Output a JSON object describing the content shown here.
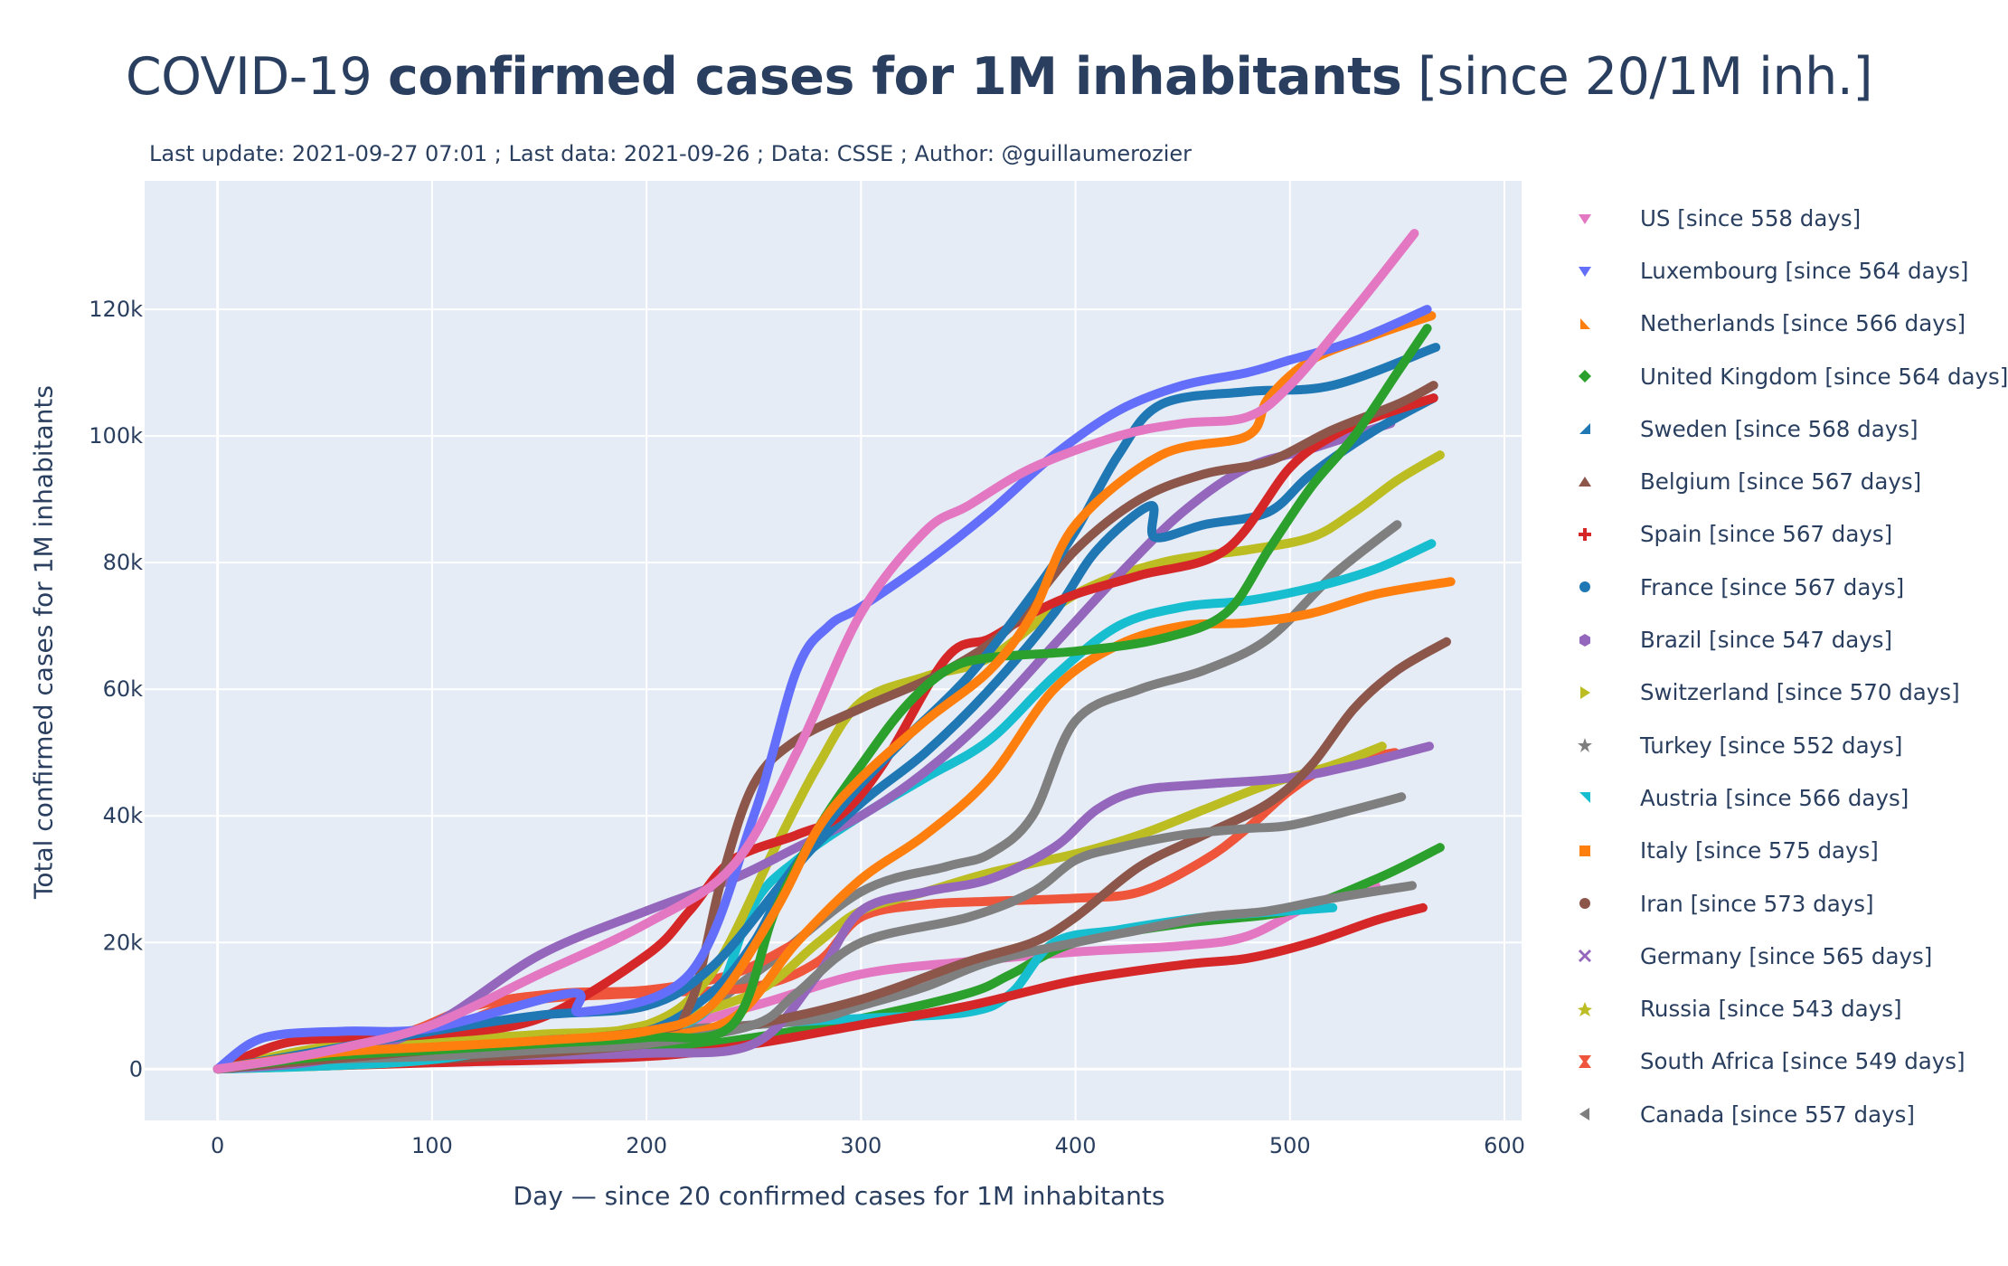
{
  "title": {
    "part1": "COVID-19 ",
    "part2": "confirmed cases for 1M inhabitants",
    "part3": " [since 20/1M inh.]"
  },
  "subtitle": "Last update: 2021-09-27 07:01 ; Last data: 2021-09-26 ; Data: CSSE ; Author: @guillaumerozier",
  "chart_data": {
    "type": "line",
    "title": "COVID-19 confirmed cases for 1M inhabitants [since 20/1M inh.]",
    "xlabel": "Day — since 20 confirmed cases  for 1M inhabitants",
    "ylabel": "Total confirmed cases  for 1M inhabitants",
    "xlim": [
      -34,
      608
    ],
    "ylim": [
      -8100,
      140300
    ],
    "xticks": [
      0,
      100,
      200,
      300,
      400,
      500,
      600
    ],
    "yticks": [
      0,
      20000,
      40000,
      60000,
      80000,
      100000,
      120000
    ],
    "ytick_labels": [
      "0",
      "20k",
      "40k",
      "60k",
      "80k",
      "100k",
      "120k"
    ],
    "grid": true,
    "legend_position": "right",
    "series": [
      {
        "name": "US  [since 558 days]",
        "color": "#e377c2",
        "symbol": "triangle-down",
        "x": [
          0,
          30,
          60,
          100,
          150,
          200,
          240,
          270,
          300,
          330,
          350,
          380,
          420,
          450,
          480,
          500,
          530,
          558
        ],
        "y": [
          20,
          1500,
          3500,
          7000,
          15000,
          23000,
          32000,
          50000,
          72000,
          85000,
          89000,
          95000,
          100000,
          102000,
          103000,
          108000,
          120000,
          132000
        ]
      },
      {
        "name": "Luxembourg  [since 564 days]",
        "color": "#636efa",
        "symbol": "triangle-down",
        "x": [
          0,
          15,
          30,
          60,
          100,
          165,
          170,
          220,
          250,
          270,
          285,
          300,
          330,
          360,
          390,
          420,
          450,
          480,
          500,
          530,
          564
        ],
        "y": [
          20,
          4000,
          5500,
          6000,
          6500,
          12000,
          9000,
          15000,
          40000,
          63000,
          70000,
          73000,
          80000,
          88000,
          97000,
          104000,
          108000,
          110000,
          112000,
          115000,
          120000
        ]
      },
      {
        "name": "Netherlands  [since 566 days]",
        "color": "#ff7f0e",
        "symbol": "triangle-se",
        "x": [
          0,
          50,
          100,
          150,
          200,
          230,
          260,
          280,
          300,
          330,
          360,
          380,
          400,
          440,
          480,
          490,
          510,
          540,
          566
        ],
        "y": [
          20,
          2500,
          3500,
          4500,
          6000,
          10000,
          25000,
          38000,
          46000,
          55000,
          63000,
          72000,
          86000,
          97000,
          100000,
          106000,
          112000,
          116000,
          119000
        ]
      },
      {
        "name": "United Kingdom  [since 564 days]",
        "color": "#2ca02c",
        "symbol": "diamond",
        "x": [
          0,
          50,
          100,
          150,
          200,
          240,
          260,
          280,
          300,
          320,
          340,
          360,
          400,
          440,
          470,
          490,
          510,
          530,
          550,
          564
        ],
        "y": [
          20,
          2000,
          3000,
          4000,
          5000,
          7000,
          25000,
          38000,
          48000,
          57000,
          63000,
          65000,
          66000,
          68000,
          72000,
          82000,
          92000,
          100000,
          110000,
          117000
        ]
      },
      {
        "name": "Sweden  [since 568 days]",
        "color": "#1f77b4",
        "symbol": "triangle-ne",
        "x": [
          0,
          50,
          100,
          150,
          200,
          230,
          260,
          280,
          300,
          320,
          350,
          380,
          400,
          420,
          440,
          480,
          520,
          568
        ],
        "y": [
          20,
          3000,
          6000,
          8500,
          10000,
          16000,
          28000,
          37000,
          45000,
          52000,
          62000,
          75000,
          85000,
          97000,
          105000,
          107000,
          108000,
          114000
        ]
      },
      {
        "name": "Belgium  [since 567 days]",
        "color": "#8c564b",
        "symbol": "triangle-up",
        "x": [
          0,
          100,
          200,
          220,
          235,
          250,
          270,
          300,
          340,
          370,
          400,
          430,
          460,
          490,
          520,
          550,
          567
        ],
        "y": [
          20,
          3000,
          6000,
          10000,
          30000,
          45000,
          52000,
          57000,
          63000,
          70000,
          82000,
          90000,
          94000,
          96000,
          101000,
          105000,
          108000
        ]
      },
      {
        "name": "Spain  [since 567 days]",
        "color": "#d62728",
        "symbol": "cross",
        "x": [
          0,
          30,
          60,
          100,
          150,
          200,
          220,
          240,
          270,
          290,
          310,
          340,
          360,
          380,
          400,
          430,
          470,
          500,
          520,
          540,
          567
        ],
        "y": [
          20,
          4000,
          5000,
          5500,
          8000,
          18000,
          25000,
          33000,
          37000,
          40000,
          48000,
          65000,
          68000,
          72000,
          75000,
          78000,
          82000,
          95000,
          100000,
          103000,
          106000
        ]
      },
      {
        "name": "France  [since 567 days]",
        "color": "#1f77b4",
        "symbol": "circle",
        "x": [
          0,
          50,
          100,
          150,
          200,
          230,
          250,
          270,
          300,
          330,
          360,
          390,
          410,
          435,
          437,
          460,
          490,
          510,
          540,
          567
        ],
        "y": [
          20,
          2000,
          3000,
          4500,
          6000,
          12000,
          20000,
          32000,
          42000,
          50000,
          60000,
          72000,
          82000,
          89000,
          84000,
          86000,
          88000,
          94000,
          101000,
          106000
        ]
      },
      {
        "name": "Brazil  [since 547 days]",
        "color": "#9467bd",
        "symbol": "hexagon",
        "x": [
          0,
          50,
          100,
          150,
          200,
          240,
          270,
          300,
          330,
          360,
          390,
          420,
          450,
          480,
          510,
          547
        ],
        "y": [
          20,
          1500,
          7000,
          18000,
          25000,
          30000,
          35000,
          40000,
          47000,
          56000,
          67000,
          78000,
          88000,
          95000,
          98000,
          102000
        ]
      },
      {
        "name": "Switzerland  [since 570 days]",
        "color": "#bcbd22",
        "symbol": "triangle-right",
        "x": [
          0,
          50,
          100,
          150,
          200,
          230,
          260,
          280,
          300,
          330,
          360,
          400,
          440,
          480,
          510,
          530,
          550,
          570
        ],
        "y": [
          20,
          3500,
          4500,
          5500,
          7000,
          15000,
          35000,
          48000,
          58000,
          62000,
          65000,
          75000,
          80000,
          82000,
          84000,
          88000,
          93000,
          97000
        ]
      },
      {
        "name": "Turkey  [since 552 days]",
        "color": "#7f7f7f",
        "symbol": "star",
        "x": [
          0,
          50,
          100,
          150,
          200,
          250,
          270,
          300,
          350,
          380,
          400,
          420,
          450,
          480,
          500,
          530,
          552
        ],
        "y": [
          20,
          1500,
          2000,
          3000,
          4000,
          7000,
          12000,
          20000,
          24000,
          28000,
          33000,
          35000,
          37000,
          38000,
          38500,
          41000,
          43000
        ]
      },
      {
        "name": "Austria  [since 566 days]",
        "color": "#17becf",
        "symbol": "triangle-nw",
        "x": [
          0,
          50,
          100,
          150,
          200,
          230,
          250,
          270,
          300,
          330,
          360,
          390,
          420,
          450,
          480,
          510,
          540,
          566
        ],
        "y": [
          20,
          500,
          1500,
          4000,
          6000,
          10000,
          26000,
          33000,
          40000,
          46000,
          52000,
          62000,
          70000,
          73000,
          74000,
          76000,
          79000,
          83000
        ]
      },
      {
        "name": "Italy  [since 575 days]",
        "color": "#ff7f0e",
        "symbol": "square",
        "x": [
          0,
          50,
          100,
          150,
          200,
          240,
          270,
          300,
          330,
          360,
          390,
          420,
          450,
          480,
          510,
          540,
          575
        ],
        "y": [
          20,
          2500,
          3800,
          4000,
          5000,
          8000,
          20000,
          30000,
          37000,
          46000,
          60000,
          67000,
          70000,
          70500,
          72000,
          75000,
          77000
        ]
      },
      {
        "name": "Iran  [since 573 days]",
        "color": "#8c564b",
        "symbol": "circle",
        "x": [
          0,
          50,
          100,
          150,
          200,
          250,
          300,
          350,
          380,
          400,
          430,
          460,
          490,
          510,
          530,
          550,
          573
        ],
        "y": [
          20,
          1000,
          1500,
          2500,
          4000,
          7000,
          11000,
          17000,
          20000,
          24000,
          32000,
          37000,
          42000,
          48000,
          57000,
          63000,
          67500
        ]
      },
      {
        "name": "Germany  [since 565 days]",
        "color": "#9467bd",
        "symbol": "x",
        "x": [
          0,
          50,
          100,
          150,
          200,
          250,
          280,
          300,
          330,
          360,
          390,
          410,
          430,
          460,
          500,
          530,
          565
        ],
        "y": [
          20,
          1500,
          2000,
          2200,
          2500,
          4000,
          15000,
          25000,
          28000,
          30000,
          35000,
          41000,
          44000,
          45000,
          46000,
          48000,
          51000
        ]
      },
      {
        "name": "Russia  [since 543 days]",
        "color": "#bcbd22",
        "symbol": "star-triangle-up",
        "x": [
          0,
          50,
          100,
          150,
          200,
          250,
          280,
          300,
          330,
          360,
          400,
          430,
          460,
          490,
          520,
          543
        ],
        "y": [
          20,
          500,
          1500,
          4000,
          7000,
          12000,
          20000,
          25000,
          28000,
          31000,
          34000,
          37000,
          41000,
          45000,
          48000,
          51000
        ]
      },
      {
        "name": "South Africa  [since 549 days]",
        "color": "#ef553b",
        "symbol": "hourglass",
        "x": [
          0,
          50,
          100,
          120,
          150,
          200,
          250,
          280,
          300,
          330,
          360,
          400,
          430,
          460,
          480,
          500,
          520,
          549
        ],
        "y": [
          20,
          1000,
          3000,
          8000,
          11000,
          12000,
          13000,
          17000,
          24000,
          26000,
          26500,
          27000,
          28000,
          33000,
          38000,
          44000,
          48000,
          50000
        ]
      },
      {
        "name": "Canada  [since 557 days]",
        "color": "#7f7f7f",
        "symbol": "triangle-left",
        "x": [
          0,
          50,
          100,
          150,
          200,
          250,
          280,
          300,
          330,
          360,
          400,
          430,
          460,
          490,
          520,
          557
        ],
        "y": [
          20,
          1500,
          3000,
          5000,
          6000,
          7000,
          8000,
          10000,
          13000,
          17000,
          20000,
          22000,
          24000,
          25000,
          27000,
          29000
        ]
      }
    ],
    "extra_unlabeled_series": [
      {
        "color": "#e377c2",
        "x": [
          0,
          100,
          200,
          250,
          300,
          350,
          400,
          450,
          480,
          510,
          540
        ],
        "y": [
          20,
          2500,
          6000,
          10000,
          15000,
          17000,
          18500,
          19500,
          21000,
          26000,
          29000
        ]
      },
      {
        "color": "#2ca02c",
        "x": [
          0,
          100,
          200,
          250,
          300,
          350,
          370,
          400,
          450,
          500,
          540,
          570
        ],
        "y": [
          20,
          1500,
          3000,
          5000,
          8000,
          12000,
          15000,
          20000,
          23000,
          25000,
          30000,
          35000
        ]
      },
      {
        "color": "#17becf",
        "x": [
          0,
          100,
          200,
          250,
          300,
          350,
          370,
          390,
          420,
          460,
          500,
          520
        ],
        "y": [
          20,
          2500,
          5000,
          7000,
          8000,
          9000,
          12000,
          20000,
          22000,
          24000,
          25000,
          25500
        ]
      },
      {
        "color": "#d62728",
        "x": [
          0,
          100,
          200,
          250,
          300,
          350,
          400,
          450,
          480,
          510,
          540,
          562
        ],
        "y": [
          20,
          1000,
          2000,
          4000,
          7000,
          10000,
          14000,
          16500,
          17500,
          20000,
          23500,
          25500
        ]
      },
      {
        "color": "#7f7f7f",
        "x": [
          0,
          100,
          200,
          250,
          300,
          340,
          360,
          380,
          400,
          430,
          460,
          490,
          520,
          550
        ],
        "y": [
          20,
          2500,
          5000,
          15000,
          28000,
          32000,
          34000,
          40000,
          55000,
          60000,
          63000,
          68000,
          78000,
          86000
        ]
      },
      {
        "color": "#ef553b",
        "x": [
          0,
          80,
          120,
          160,
          200,
          240,
          270
        ],
        "y": [
          20,
          5000,
          10000,
          12000,
          12500,
          15000,
          20000
        ]
      }
    ]
  }
}
